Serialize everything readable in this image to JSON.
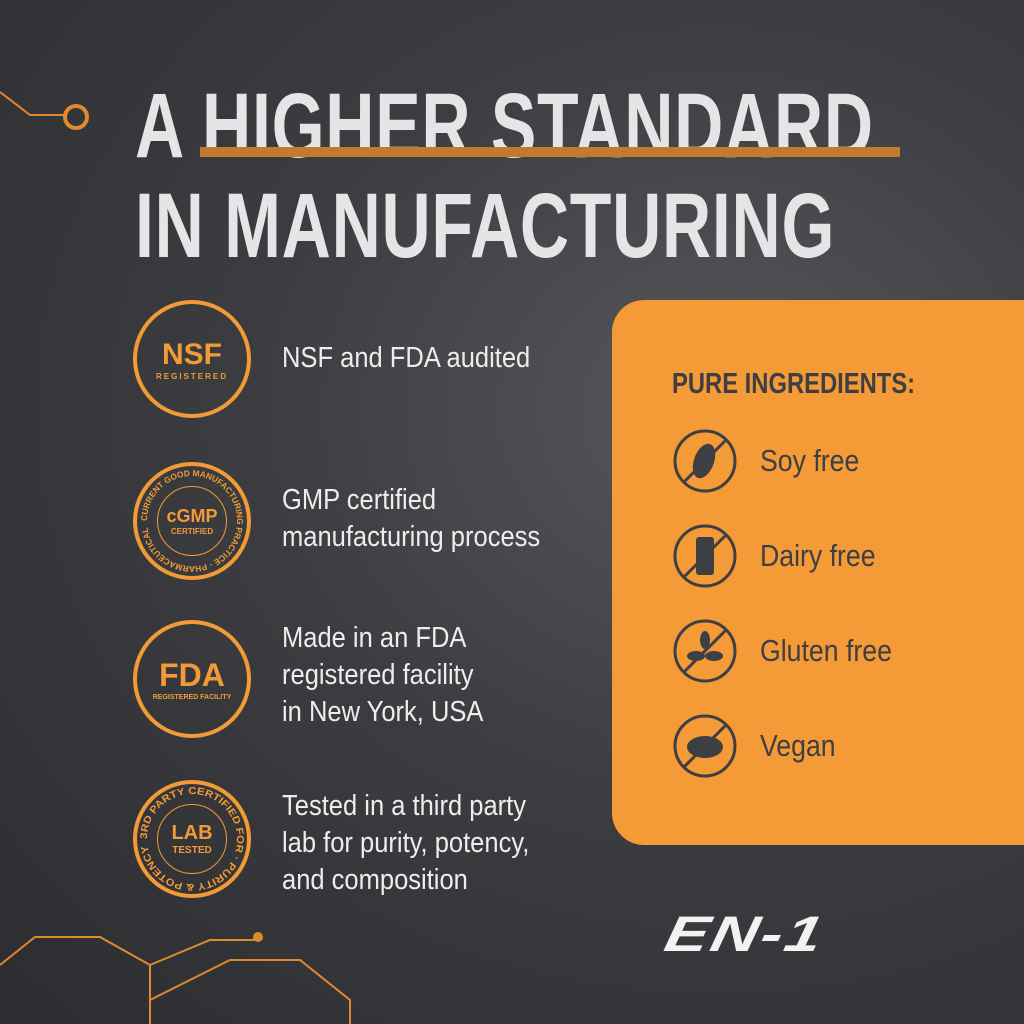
{
  "headline": {
    "line1": "A HIGHER STANDARD",
    "line2": "IN MANUFACTURING"
  },
  "features": [
    {
      "badge": "NSF",
      "badge_sub": "REGISTERED",
      "text": [
        "NSF and FDA audited"
      ]
    },
    {
      "badge": "cGMP",
      "badge_sub": "CERTIFIED",
      "badge_ring": "CURRENT GOOD MANUFACTURING PRACTICE · PHARMACEUTICAL",
      "text": [
        "GMP certified",
        "manufacturing process"
      ]
    },
    {
      "badge": "FDA",
      "badge_sub": "REGISTERED FACILITY",
      "text": [
        "Made in an FDA",
        "registered facility",
        "in New York, USA"
      ]
    },
    {
      "badge": "LAB",
      "badge_sub": "TESTED",
      "badge_ring": "3RD PARTY CERTIFIED FOR · PURITY & POTENCY",
      "text": [
        "Tested in a third party",
        "lab for purity, potency,",
        "and composition"
      ]
    }
  ],
  "panel": {
    "title": "PURE INGREDIENTS:",
    "items": [
      {
        "icon": "no-soy-icon",
        "label": "Soy free"
      },
      {
        "icon": "no-dairy-icon",
        "label": "Dairy free"
      },
      {
        "icon": "no-gluten-icon",
        "label": "Gluten free"
      },
      {
        "icon": "no-meat-icon",
        "label": "Vegan"
      }
    ]
  },
  "brand": "EN-1",
  "colors": {
    "accent": "#f49a37",
    "text_dark": "#3d3f43",
    "background": "#3a3b3d"
  }
}
